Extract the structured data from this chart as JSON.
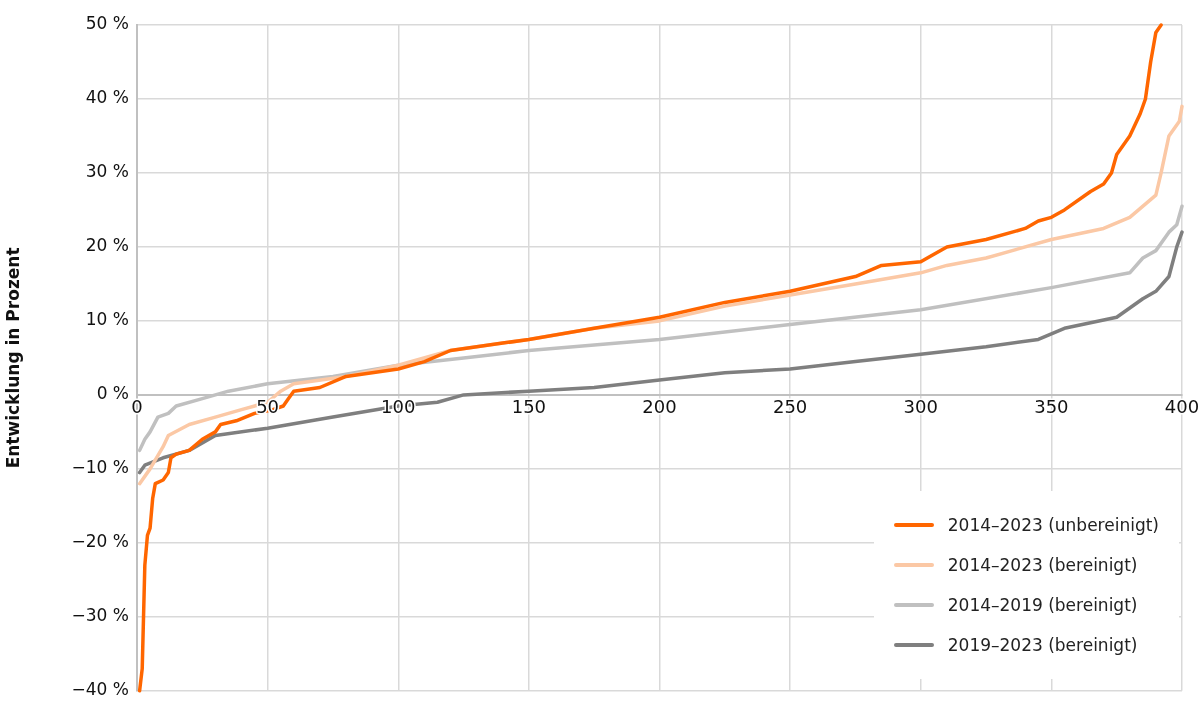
{
  "chart_data": {
    "type": "line",
    "ylabel": "Entwicklung in Prozent",
    "xlim": [
      0,
      400
    ],
    "xticks": [
      0,
      50,
      100,
      150,
      200,
      250,
      300,
      350,
      400
    ],
    "ylim": [
      -40,
      50
    ],
    "yticks": [
      {
        "value": -40,
        "label": "−40 %"
      },
      {
        "value": -30,
        "label": "−30 %"
      },
      {
        "value": -20,
        "label": "−20 %"
      },
      {
        "value": -10,
        "label": "−10 %"
      },
      {
        "value": 0,
        "label": "0 %"
      },
      {
        "value": 10,
        "label": "10 %"
      },
      {
        "value": 20,
        "label": "20 %"
      },
      {
        "value": 30,
        "label": "30 %"
      },
      {
        "value": 40,
        "label": "40 %"
      },
      {
        "value": 50,
        "label": "50 %"
      }
    ],
    "grid": true,
    "legend": "bottom right",
    "marker": "none",
    "line_style": "solid",
    "series": [
      {
        "name": "2014–2023 (unbereinigt)",
        "color": "#ff6600",
        "x": [
          1,
          2,
          3,
          4,
          5,
          6,
          7,
          10,
          12,
          13,
          15,
          20,
          25,
          30,
          32,
          38,
          45,
          52,
          56,
          58,
          60,
          70,
          80,
          100,
          110,
          120,
          140,
          150,
          175,
          200,
          225,
          250,
          275,
          285,
          300,
          310,
          325,
          340,
          345,
          350,
          355,
          365,
          370,
          373,
          375,
          380,
          384,
          386,
          388,
          390,
          392
        ],
        "values": [
          -40,
          -37,
          -23,
          -19,
          -18,
          -14,
          -12,
          -11.5,
          -10.5,
          -8.5,
          -8,
          -7.5,
          -6,
          -5,
          -4,
          -3.5,
          -2.5,
          -2,
          -1.5,
          -0.5,
          0.5,
          1,
          2.5,
          3.5,
          4.5,
          6,
          7,
          7.5,
          9,
          10.5,
          12.5,
          14,
          16,
          17.5,
          18,
          20,
          21,
          22.5,
          23.5,
          24,
          25,
          27.5,
          28.5,
          30,
          32.5,
          35,
          38,
          40,
          45,
          49,
          50
        ]
      },
      {
        "name": "2014–2023 (bereinigt)",
        "color": "#fbc8a5",
        "x": [
          1,
          5,
          10,
          12,
          20,
          30,
          40,
          50,
          55,
          60,
          80,
          100,
          120,
          150,
          175,
          200,
          225,
          250,
          275,
          300,
          310,
          325,
          350,
          370,
          380,
          390,
          392,
          395,
          399,
          400
        ],
        "values": [
          -12,
          -10,
          -7,
          -5.5,
          -4,
          -3,
          -2,
          -1,
          0.5,
          1.5,
          2.5,
          4,
          6,
          7.5,
          9,
          10,
          12,
          13.5,
          15,
          16.5,
          17.5,
          18.5,
          21,
          22.5,
          24,
          27,
          30,
          35,
          37,
          39
        ]
      },
      {
        "name": "2014–2019 (bereinigt)",
        "color": "#c0c0c0",
        "x": [
          1,
          3,
          5,
          8,
          12,
          15,
          25,
          35,
          50,
          75,
          100,
          125,
          150,
          200,
          250,
          300,
          350,
          380,
          385,
          390,
          395,
          398,
          400
        ],
        "values": [
          -7.5,
          -6,
          -5,
          -3,
          -2.5,
          -1.5,
          -0.5,
          0.5,
          1.5,
          2.5,
          4,
          5,
          6,
          7.5,
          9.5,
          11.5,
          14.5,
          16.5,
          18.5,
          19.5,
          22,
          23,
          25.5
        ]
      },
      {
        "name": "2019–2023 (bereinigt)",
        "color": "#7f7f7f",
        "x": [
          1,
          3,
          10,
          20,
          30,
          50,
          75,
          100,
          115,
          125,
          150,
          175,
          200,
          225,
          250,
          275,
          300,
          325,
          345,
          355,
          375,
          385,
          390,
          395,
          398,
          400
        ],
        "values": [
          -10.5,
          -9.5,
          -8.5,
          -7.5,
          -5.5,
          -4.5,
          -3,
          -1.5,
          -1,
          0,
          0.5,
          1,
          2,
          3,
          3.5,
          4.5,
          5.5,
          6.5,
          7.5,
          9,
          10.5,
          13,
          14,
          16,
          20,
          22
        ]
      }
    ]
  }
}
